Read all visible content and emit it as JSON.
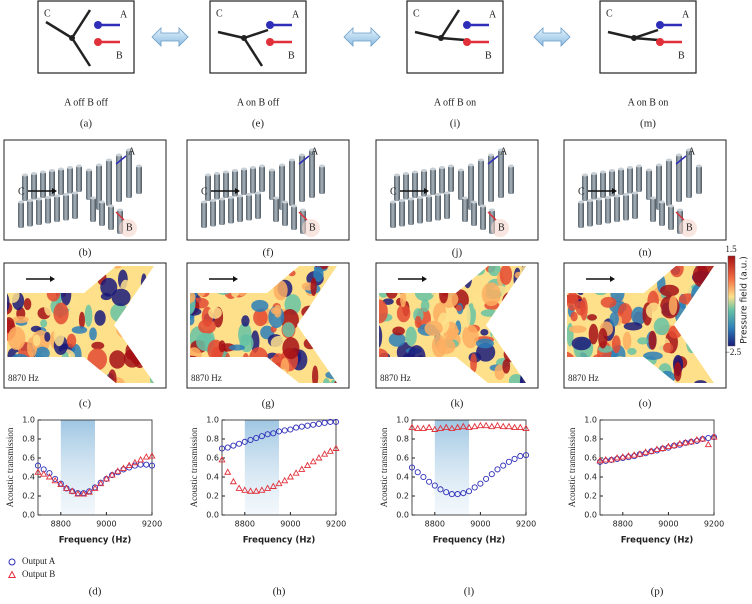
{
  "schematics": [
    {
      "ports": [
        "C",
        "A",
        "B"
      ],
      "state": "A off B off",
      "panel": "(a)"
    },
    {
      "ports": [
        "C",
        "A",
        "B"
      ],
      "state": "A on B off",
      "panel": "(e)"
    },
    {
      "ports": [
        "C",
        "A",
        "B"
      ],
      "state": "A off B on",
      "panel": "(i)"
    },
    {
      "ports": [
        "C",
        "A",
        "B"
      ],
      "state": "A on B on",
      "panel": "(m)"
    }
  ],
  "photos": [
    {
      "ports": [
        "C",
        "A",
        "B"
      ],
      "panel": "(b)"
    },
    {
      "ports": [
        "C",
        "A",
        "B"
      ],
      "panel": "(f)"
    },
    {
      "ports": [
        "C",
        "A",
        "B"
      ],
      "panel": "(j)"
    },
    {
      "ports": [
        "C",
        "A",
        "B"
      ],
      "panel": "(n)"
    }
  ],
  "fields": [
    {
      "frequency": "8870 Hz",
      "panel": "(c)"
    },
    {
      "frequency": "8870 Hz",
      "panel": "(g)"
    },
    {
      "frequency": "8870 Hz",
      "panel": "(k)"
    },
    {
      "frequency": "8870 Hz",
      "panel": "(o)"
    }
  ],
  "colorbar": {
    "title": "Pressure field (a.u.)",
    "max": "1.5",
    "min": "−2.5"
  },
  "chart_data": [
    {
      "type": "scatter",
      "panel": "(d)",
      "xlabel": "Frequency (Hz)",
      "ylabel": "Acoustic transmission",
      "x": [
        8700,
        8725,
        8750,
        8775,
        8800,
        8825,
        8850,
        8875,
        8900,
        8925,
        8950,
        8975,
        9000,
        9025,
        9050,
        9075,
        9100,
        9125,
        9150,
        9175,
        9200
      ],
      "xlim": [
        8700,
        9200
      ],
      "xticks": [
        8800,
        9000,
        9200
      ],
      "ylim": [
        0,
        1
      ],
      "yticks": [
        {
          "value": 0,
          "label": "0.0"
        },
        0.2,
        0.4,
        0.6,
        0.8,
        {
          "value": 1,
          "label": "1.0"
        }
      ],
      "band": [
        8800,
        8950
      ],
      "series": [
        {
          "name": "Output A",
          "color": "#2e2eb8",
          "marker": "circle",
          "values": [
            0.52,
            0.48,
            0.44,
            0.38,
            0.33,
            0.28,
            0.25,
            0.23,
            0.23,
            0.25,
            0.29,
            0.34,
            0.38,
            0.42,
            0.45,
            0.48,
            0.5,
            0.52,
            0.53,
            0.53,
            0.52
          ]
        },
        {
          "name": "Output B",
          "color": "#e0303a",
          "marker": "triangle",
          "values": [
            0.45,
            0.43,
            0.4,
            0.36,
            0.32,
            0.28,
            0.25,
            0.22,
            0.22,
            0.24,
            0.28,
            0.33,
            0.38,
            0.42,
            0.46,
            0.49,
            0.52,
            0.55,
            0.58,
            0.61,
            0.62
          ]
        }
      ]
    },
    {
      "type": "scatter",
      "panel": "(h)",
      "xlabel": "Frequency (Hz)",
      "ylabel": "Acoustic transmission",
      "x": [
        8700,
        8725,
        8750,
        8775,
        8800,
        8825,
        8850,
        8875,
        8900,
        8925,
        8950,
        8975,
        9000,
        9025,
        9050,
        9075,
        9100,
        9125,
        9150,
        9175,
        9200
      ],
      "xlim": [
        8700,
        9200
      ],
      "xticks": [
        8800,
        9000,
        9200
      ],
      "ylim": [
        0,
        1
      ],
      "yticks": [
        {
          "value": 0,
          "label": "0.0"
        },
        0.2,
        0.4,
        0.6,
        0.8,
        {
          "value": 1,
          "label": "1.0"
        }
      ],
      "band": [
        8800,
        8950
      ],
      "series": [
        {
          "color": "#2e2eb8",
          "marker": "circle",
          "values": [
            0.7,
            0.71,
            0.73,
            0.75,
            0.77,
            0.79,
            0.81,
            0.83,
            0.85,
            0.86,
            0.88,
            0.89,
            0.9,
            0.92,
            0.93,
            0.94,
            0.95,
            0.96,
            0.97,
            0.98,
            0.98
          ]
        },
        {
          "color": "#e0303a",
          "marker": "triangle",
          "values": [
            0.58,
            0.45,
            0.35,
            0.28,
            0.26,
            0.25,
            0.25,
            0.26,
            0.28,
            0.3,
            0.33,
            0.36,
            0.4,
            0.44,
            0.48,
            0.52,
            0.56,
            0.6,
            0.64,
            0.67,
            0.7
          ]
        }
      ]
    },
    {
      "type": "scatter",
      "panel": "(l)",
      "xlabel": "Frequency (Hz)",
      "ylabel": "Acoustic transmission",
      "x": [
        8700,
        8725,
        8750,
        8775,
        8800,
        8825,
        8850,
        8875,
        8900,
        8925,
        8950,
        8975,
        9000,
        9025,
        9050,
        9075,
        9100,
        9125,
        9150,
        9175,
        9200
      ],
      "xlim": [
        8700,
        9200
      ],
      "xticks": [
        8800,
        9000,
        9200
      ],
      "ylim": [
        0,
        1
      ],
      "yticks": [
        {
          "value": 0,
          "label": "0.0"
        },
        0.2,
        0.4,
        0.6,
        0.8,
        {
          "value": 1,
          "label": "1.0"
        }
      ],
      "band": [
        8800,
        8950
      ],
      "series": [
        {
          "color": "#2e2eb8",
          "marker": "circle",
          "values": [
            0.5,
            0.45,
            0.4,
            0.35,
            0.31,
            0.27,
            0.24,
            0.22,
            0.22,
            0.23,
            0.25,
            0.29,
            0.33,
            0.38,
            0.43,
            0.48,
            0.52,
            0.56,
            0.59,
            0.62,
            0.63
          ]
        },
        {
          "color": "#e0303a",
          "marker": "triangle",
          "values": [
            0.92,
            0.91,
            0.91,
            0.92,
            0.9,
            0.91,
            0.92,
            0.91,
            0.92,
            0.93,
            0.92,
            0.93,
            0.94,
            0.94,
            0.93,
            0.94,
            0.93,
            0.93,
            0.92,
            0.92,
            0.91
          ]
        }
      ]
    },
    {
      "type": "scatter",
      "panel": "(p)",
      "xlabel": "Frequency (Hz)",
      "ylabel": "Acoustic transmission",
      "x": [
        8700,
        8725,
        8750,
        8775,
        8800,
        8825,
        8850,
        8875,
        8900,
        8925,
        8950,
        8975,
        9000,
        9025,
        9050,
        9075,
        9100,
        9125,
        9150,
        9175,
        9200
      ],
      "xlim": [
        8700,
        9200
      ],
      "xticks": [
        8800,
        9000,
        9200
      ],
      "ylim": [
        0,
        1
      ],
      "yticks": [
        {
          "value": 0,
          "label": "0.0"
        },
        0.2,
        0.4,
        0.6,
        0.8,
        {
          "value": 1,
          "label": "1.0"
        }
      ],
      "series": [
        {
          "color": "#2e2eb8",
          "marker": "circle",
          "values": [
            0.56,
            0.57,
            0.58,
            0.59,
            0.6,
            0.61,
            0.62,
            0.64,
            0.65,
            0.67,
            0.68,
            0.7,
            0.71,
            0.73,
            0.74,
            0.76,
            0.77,
            0.78,
            0.8,
            0.81,
            0.82
          ]
        },
        {
          "color": "#e0303a",
          "marker": "triangle",
          "values": [
            0.57,
            0.58,
            0.58,
            0.6,
            0.61,
            0.62,
            0.63,
            0.64,
            0.66,
            0.67,
            0.69,
            0.7,
            0.72,
            0.73,
            0.75,
            0.76,
            0.77,
            0.79,
            0.8,
            0.74,
            0.82
          ]
        }
      ]
    }
  ]
}
